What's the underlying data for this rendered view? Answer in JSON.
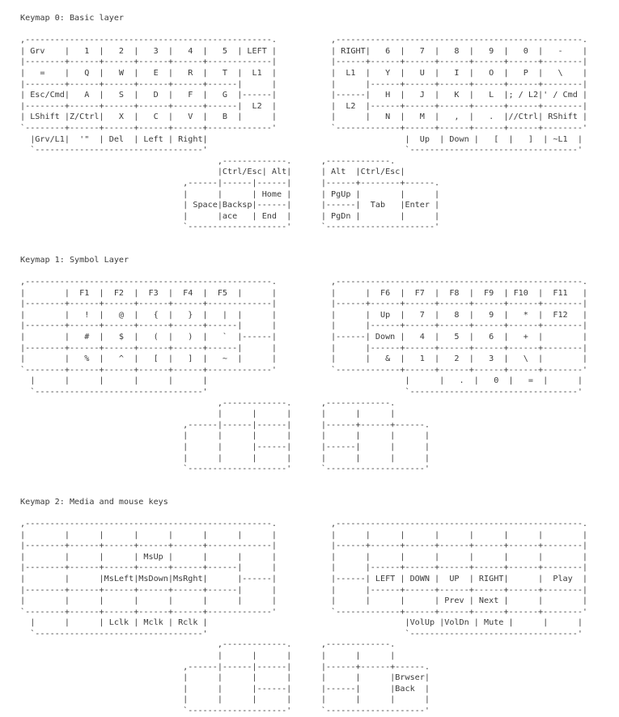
{
  "page": {
    "background_color": "#ffffff",
    "text_color": "#3a3a3a"
  },
  "keymaps": [
    {
      "title": "Keymap 0: Basic layer",
      "art": [
        ",--------------------------------------------------.           ,--------------------------------------------------.",
        "| Grv    |   1  |   2  |   3  |   4  |   5  | LEFT |           | RIGHT|   6  |   7  |   8  |   9  |   0  |   -    |",
        "|--------+------+------+------+------+-------------|           |------+------+------+------+------+------+--------|",
        "|   =    |   Q  |   W  |   E  |   R  |   T  |  L1  |           |  L1  |   Y  |   U  |   I  |   O  |   P  |   \\    |",
        "|--------+------+------+------+------+------|      |           |      |------+------+------+------+------+--------|",
        "| Esc/Cmd|   A  |   S  |   D  |   F  |   G  |------|           |------|   H  |   J  |   K  |   L  |; / L2|' / Cmd |",
        "|--------+------+------+------+------+------|  L2  |           |  L2  |------+------+------+------+------+--------|",
        "| LShift |Z/Ctrl|   X  |   C  |   V  |   B  |      |           |      |   N  |   M  |   ,  |   .  |//Ctrl| RShift |",
        "`--------+------+------+------+------+-------------'           `-------------+------+------+------+------+--------'",
        "  |Grv/L1|  '\"  | Del  | Left | Right|                                        |  Up  | Down |   [  |   ]  | ~L1  |",
        "  `----------------------------------'                                        `----------------------------------'",
        "                                        ,-------------.      ,-------------.",
        "                                        |Ctrl/Esc| Alt|      | Alt  |Ctrl/Esc|",
        "                                 ,------|------|------|      |------+--------+------.",
        "                                 |      |      | Home |      | PgUp |        |      |",
        "                                 | Space|Backsp|------|      |------|  Tab   |Enter |",
        "                                 |      |ace   | End  |      | PgDn |        |      |",
        "                                 `--------------------'      `----------------------'"
      ]
    },
    {
      "title": "Keymap 1: Symbol Layer",
      "art": [
        ",--------------------------------------------------.           ,--------------------------------------------------.",
        "|        |  F1  |  F2  |  F3  |  F4  |  F5  |      |           |      |  F6  |  F7  |  F8  |  F9  | F10  |  F11   |",
        "|--------+------+------+------+------+-------------|           |------+------+------+------+------+------+--------|",
        "|        |   !  |   @  |   {  |   }  |   |  |      |           |      |  Up  |   7  |   8  |   9  |   *  |  F12   |",
        "|--------+------+------+------+------+------|      |           |      |------+------+------+------+------+--------|",
        "|        |   #  |   $  |   (  |   )  |   `  |------|           |------| Down |   4  |   5  |   6  |   +  |        |",
        "|--------+------+------+------+------+------|      |           |      |------+------+------+------+------+--------|",
        "|        |   %  |   ^  |   [  |   ]  |   ~  |      |           |      |   &  |   1  |   2  |   3  |   \\  |        |",
        "`--------+------+------+------+------+-------------'           `-------------+------+------+------+------+--------'",
        "  |      |      |      |      |      |                                        |      |   .  |   0  |   =  |      |",
        "  `----------------------------------'                                        `----------------------------------'",
        "                                        ,-------------.      ,-------------.",
        "                                        |      |      |      |      |      |",
        "                                 ,------|------|------|      |------+------+------.",
        "                                 |      |      |      |      |      |      |      |",
        "                                 |      |      |------|      |------|      |      |",
        "                                 |      |      |      |      |      |      |      |",
        "                                 `--------------------'      `--------------------'"
      ]
    },
    {
      "title": "Keymap 2: Media and mouse keys",
      "art": [
        ",--------------------------------------------------.           ,--------------------------------------------------.",
        "|        |      |      |      |      |      |      |           |      |      |      |      |      |      |        |",
        "|--------+------+------+------+------+-------------|           |------+------+------+------+------+------+--------|",
        "|        |      |      | MsUp |      |      |      |           |      |      |      |      |      |      |        |",
        "|--------+------+------+------+------+------|      |           |      |------+------+------+------+------+--------|",
        "|        |      |MsLeft|MsDown|MsRght|      |------|           |------| LEFT | DOWN |  UP  | RIGHT|      |  Play  |",
        "|--------+------+------+------+------+------|      |           |      |------+------+------+------+------+--------|",
        "|        |      |      |      |      |      |      |           |      |      |      | Prev | Next |      |        |",
        "`--------+------+------+------+------+-------------'           `-------------+------+------+------+------+--------'",
        "  |      |      | Lclk | Mclk | Rclk |                                        |VolUp |VolDn | Mute |      |      |",
        "  `----------------------------------'                                        `----------------------------------'",
        "                                        ,-------------.      ,-------------.",
        "                                        |      |      |      |      |      |",
        "                                 ,------|------|------|      |------+------+------.",
        "                                 |      |      |      |      |      |      |Brwser|",
        "                                 |      |      |------|      |------|      |Back  |",
        "                                 |      |      |      |      |      |      |      |",
        "                                 `--------------------'      `--------------------'"
      ]
    }
  ]
}
